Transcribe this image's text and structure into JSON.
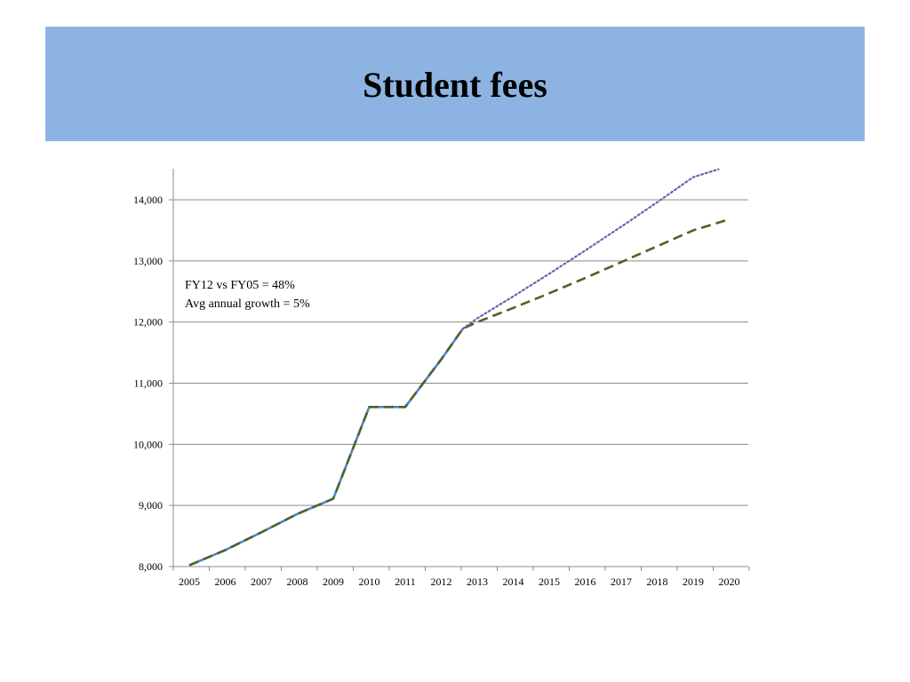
{
  "slide": {
    "title": "Student fees",
    "banner_color": "#8db3e2"
  },
  "chart_data": {
    "type": "line",
    "title": "",
    "xlabel": "",
    "ylabel": "",
    "x": [
      2005,
      2006,
      2007,
      2008,
      2009,
      2010,
      2011,
      2012,
      2013,
      2014,
      2015,
      2016,
      2017,
      2018,
      2019,
      2020
    ],
    "x_tick_labels": [
      "2005",
      "2006",
      "2007",
      "2008",
      "2009",
      "2010",
      "2011",
      "2012",
      "2013",
      "2014",
      "2015",
      "2016",
      "2017",
      "2018",
      "2019",
      "2020"
    ],
    "y_tick_values": [
      8000,
      9000,
      10000,
      11000,
      12000,
      13000,
      14000
    ],
    "y_tick_labels": [
      "8,000",
      "9,000",
      "10,000",
      "11,000",
      "12,000",
      "13,000",
      "14,000"
    ],
    "ylim": [
      8000,
      14500
    ],
    "xlim": [
      2005,
      2020
    ],
    "grid": "horizontal",
    "series": [
      {
        "style": "solid",
        "color": "#4a86c8",
        "x": [
          2005,
          2006,
          2007,
          2008,
          2009,
          2010,
          2011,
          2012,
          2012.6
        ],
        "values": [
          8020,
          8270,
          8560,
          8860,
          9110,
          10610,
          10610,
          11390,
          11890
        ]
      },
      {
        "style": "dashed",
        "color": "#4f6228",
        "x": [
          2005,
          2006,
          2007,
          2008,
          2009,
          2010,
          2011,
          2012,
          2012.6,
          2013,
          2014,
          2015,
          2016,
          2017,
          2018,
          2019,
          2020
        ],
        "values": [
          8020,
          8270,
          8560,
          8860,
          9110,
          10610,
          10610,
          11390,
          11890,
          12000,
          12230,
          12470,
          12720,
          12980,
          13240,
          13500,
          13680
        ]
      },
      {
        "style": "dotted",
        "color": "#7060a8",
        "x": [
          2012.6,
          2013,
          2014,
          2015,
          2016,
          2017,
          2018,
          2019,
          2019.7
        ],
        "values": [
          11890,
          12060,
          12420,
          12790,
          13170,
          13560,
          13960,
          14370,
          14500
        ]
      }
    ],
    "annotations": [
      "FY12 vs FY05 = 48%",
      "Avg annual growth = 5%"
    ]
  }
}
